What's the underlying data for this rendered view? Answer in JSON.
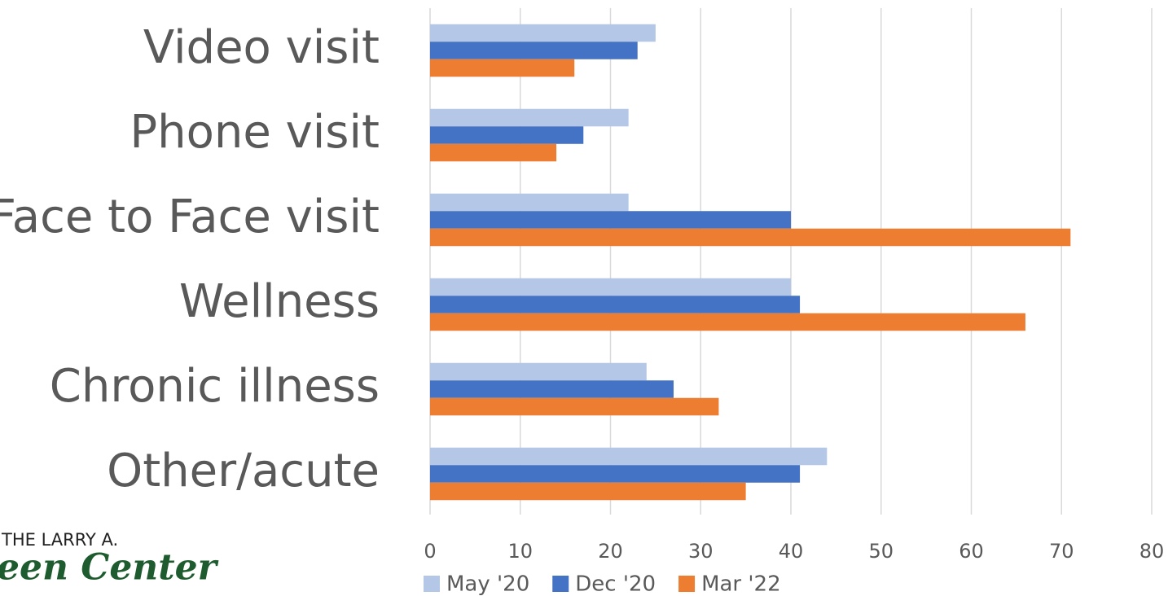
{
  "chart_data": {
    "type": "barh",
    "categories": [
      "Video visit",
      "Phone visit",
      "Face to Face visit",
      "Wellness",
      "Chronic illness",
      "Other/acute"
    ],
    "series": [
      {
        "name": "May '20",
        "color": "#b4c7e7",
        "values": [
          25,
          22,
          22,
          40,
          24,
          44
        ]
      },
      {
        "name": "Dec '20",
        "color": "#4472c4",
        "values": [
          23,
          17,
          40,
          41,
          27,
          41
        ]
      },
      {
        "name": "Mar '22",
        "color": "#ed7d31",
        "values": [
          16,
          14,
          71,
          66,
          32,
          35
        ]
      }
    ],
    "xlim": [
      0,
      80
    ],
    "xticks": [
      0,
      10,
      20,
      30,
      40,
      50,
      60,
      70,
      80
    ],
    "grid": true,
    "legend": "bottom"
  },
  "logo": {
    "line1": "THE LARRY A.",
    "line2": "een Center"
  }
}
